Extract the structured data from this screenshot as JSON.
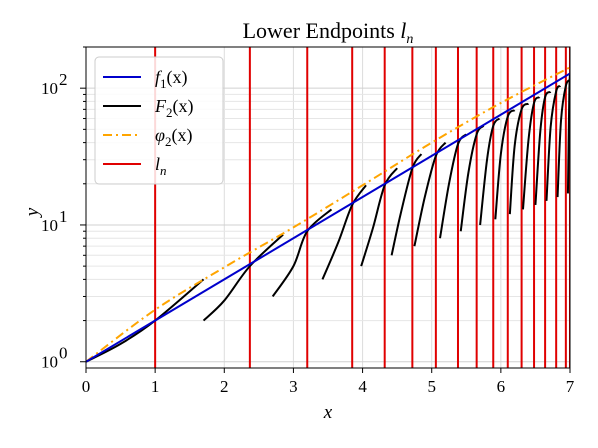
{
  "chart_data": {
    "type": "line",
    "title": "Lower Endpoints",
    "title_math": "l",
    "title_sub": "n",
    "xlabel": "x",
    "ylabel": "y",
    "xlim": [
      0,
      7
    ],
    "ylim": [
      0.9,
      200
    ],
    "yscale": "log",
    "grid": true,
    "legend_position": "top-left",
    "x_ticks": [
      0,
      1,
      2,
      3,
      4,
      5,
      6,
      7
    ],
    "x_tick_labels": [
      "0",
      "1",
      "2",
      "3",
      "4",
      "5",
      "6",
      "7"
    ],
    "y_ticks": [
      1,
      10,
      100
    ],
    "y_tick_labels": [
      {
        "base": "10",
        "exp": "0"
      },
      {
        "base": "10",
        "exp": "1"
      },
      {
        "base": "10",
        "exp": "2"
      }
    ],
    "legend": [
      {
        "label": "f",
        "sub": "1",
        "arg": "(x)",
        "color": "#0000cc",
        "style": "solid"
      },
      {
        "label": "F",
        "sub": "2",
        "arg": "(x)",
        "color": "#000000",
        "style": "solid"
      },
      {
        "label": "φ",
        "sub": "2",
        "arg": "(x)",
        "color": "#ffa500",
        "style": "dashdot"
      },
      {
        "label": "l",
        "sub": "n",
        "arg": "",
        "color": "#e00000",
        "style": "solid"
      }
    ],
    "series": [
      {
        "name": "f1(x)",
        "color": "#0000cc",
        "x": [
          0,
          7
        ],
        "y": [
          1,
          128
        ]
      },
      {
        "name": "phi2(x)",
        "color": "#ffa500",
        "x": [
          0,
          1,
          2,
          3,
          4,
          5,
          6,
          7
        ],
        "y": [
          1,
          2.4,
          4.9,
          9.6,
          19.5,
          40,
          78,
          142
        ]
      }
    ],
    "F2_segments": [
      {
        "x": [
          0,
          0.5,
          1.0,
          1.7
        ],
        "y": [
          1,
          1.35,
          2.0,
          4.0
        ]
      },
      {
        "x": [
          1.7,
          2.0,
          2.37,
          2.85
        ],
        "y": [
          2.0,
          2.8,
          5.0,
          8.5
        ]
      },
      {
        "x": [
          2.7,
          3.0,
          3.2,
          3.55
        ],
        "y": [
          3.0,
          5.0,
          9.0,
          13.0
        ]
      },
      {
        "x": [
          3.42,
          3.65,
          3.85,
          4.05
        ],
        "y": [
          4.0,
          7.5,
          14.0,
          19.5
        ]
      },
      {
        "x": [
          3.98,
          4.15,
          4.32,
          4.5
        ],
        "y": [
          5.0,
          9.5,
          19.5,
          26.0
        ]
      },
      {
        "x": [
          4.42,
          4.55,
          4.72,
          4.85
        ],
        "y": [
          6.0,
          12.0,
          26.0,
          33.0
        ]
      },
      {
        "x": [
          4.75,
          4.9,
          5.06,
          5.2
        ],
        "y": [
          7.0,
          16.0,
          32.0,
          40.0
        ]
      },
      {
        "x": [
          5.12,
          5.25,
          5.38,
          5.5
        ],
        "y": [
          8.0,
          20.0,
          39.0,
          46.0
        ]
      },
      {
        "x": [
          5.42,
          5.53,
          5.65,
          5.75
        ],
        "y": [
          9.0,
          24.0,
          46.0,
          53.0
        ]
      },
      {
        "x": [
          5.7,
          5.8,
          5.89,
          5.98
        ],
        "y": [
          10.0,
          30.0,
          53.0,
          60.0
        ]
      },
      {
        "x": [
          5.92,
          6.0,
          6.1,
          6.2
        ],
        "y": [
          11.0,
          33.0,
          62.0,
          69.0
        ]
      },
      {
        "x": [
          6.13,
          6.2,
          6.3,
          6.4
        ],
        "y": [
          12.0,
          38.0,
          70.0,
          77.0
        ]
      },
      {
        "x": [
          6.32,
          6.4,
          6.48,
          6.56
        ],
        "y": [
          13.0,
          42.0,
          78.0,
          86.0
        ]
      },
      {
        "x": [
          6.5,
          6.57,
          6.64,
          6.72
        ],
        "y": [
          14.0,
          48.0,
          86.0,
          94.0
        ]
      },
      {
        "x": [
          6.66,
          6.72,
          6.8,
          6.86
        ],
        "y": [
          15.0,
          52.0,
          95.0,
          104.0
        ]
      },
      {
        "x": [
          6.82,
          6.87,
          6.94,
          7.0
        ],
        "y": [
          16.0,
          58.0,
          104.0,
          115.0
        ]
      },
      {
        "x": [
          6.97,
          6.99,
          7.0
        ],
        "y": [
          17.0,
          90.0,
          128.0
        ]
      }
    ],
    "l_n": [
      1.0,
      2.37,
      3.2,
      3.85,
      4.32,
      4.72,
      5.06,
      5.38,
      5.65,
      5.89,
      6.1,
      6.3,
      6.48,
      6.64,
      6.8,
      6.94,
      7.0
    ]
  }
}
